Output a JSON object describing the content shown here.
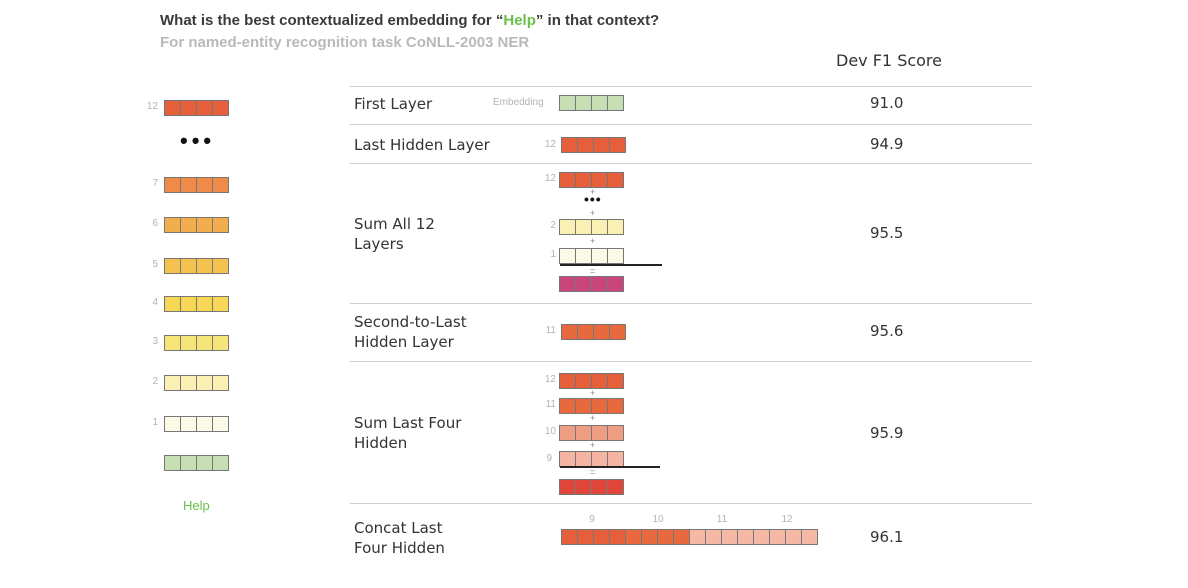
{
  "header": {
    "title_pre": "What is the best contextualized embedding for “",
    "title_word": "Help",
    "title_post": "” in that context?",
    "subtitle": "For named-entity recognition task CoNLL-2003 NER"
  },
  "column_header": "Dev F1 Score",
  "left_stack": {
    "top_number": "12",
    "dots": "•••",
    "layers": [
      "7",
      "6",
      "5",
      "4",
      "3",
      "2",
      "1"
    ],
    "word": "Help"
  },
  "colors": {
    "layer12": "#e5603a",
    "layer11": "#e8693e",
    "layer10": "#ee9c82",
    "layer9": "#f3b5a2",
    "layer7": "#ef8a49",
    "layer6": "#f2ad4d",
    "layer5": "#f5c24f",
    "layer4": "#f6d855",
    "layer3": "#f8e57a",
    "layer2": "#fbf0b3",
    "layer1": "#fdfbe8",
    "embedding": "#c6e0b4",
    "sum_all": "#c8467a",
    "sum_four": "#e0453a",
    "concat_light": "#f4b8a4",
    "accent": "#6abf4b"
  },
  "rows": [
    {
      "label": "First Layer",
      "score": "91.0",
      "tag": "Embedding"
    },
    {
      "label": "Last Hidden Layer",
      "score": "94.9",
      "tag": "12"
    },
    {
      "label_line1": "Sum All 12",
      "label_line2": "Layers",
      "score": "95.5",
      "nums": [
        "12",
        "2",
        "1"
      ],
      "dots": "•••",
      "plus": "+",
      "equals": "="
    },
    {
      "label_line1": "Second-to-Last",
      "label_line2": "Hidden Layer",
      "score": "95.6",
      "tag": "11"
    },
    {
      "label_line1": "Sum Last Four",
      "label_line2": "Hidden",
      "score": "95.9",
      "nums": [
        "12",
        "11",
        "10",
        "9"
      ],
      "plus": "+",
      "equals": "="
    },
    {
      "label_line1": "Concat Last",
      "label_line2": "Four Hidden",
      "score": "96.1",
      "nums": [
        "9",
        "10",
        "11",
        "12"
      ]
    }
  ]
}
